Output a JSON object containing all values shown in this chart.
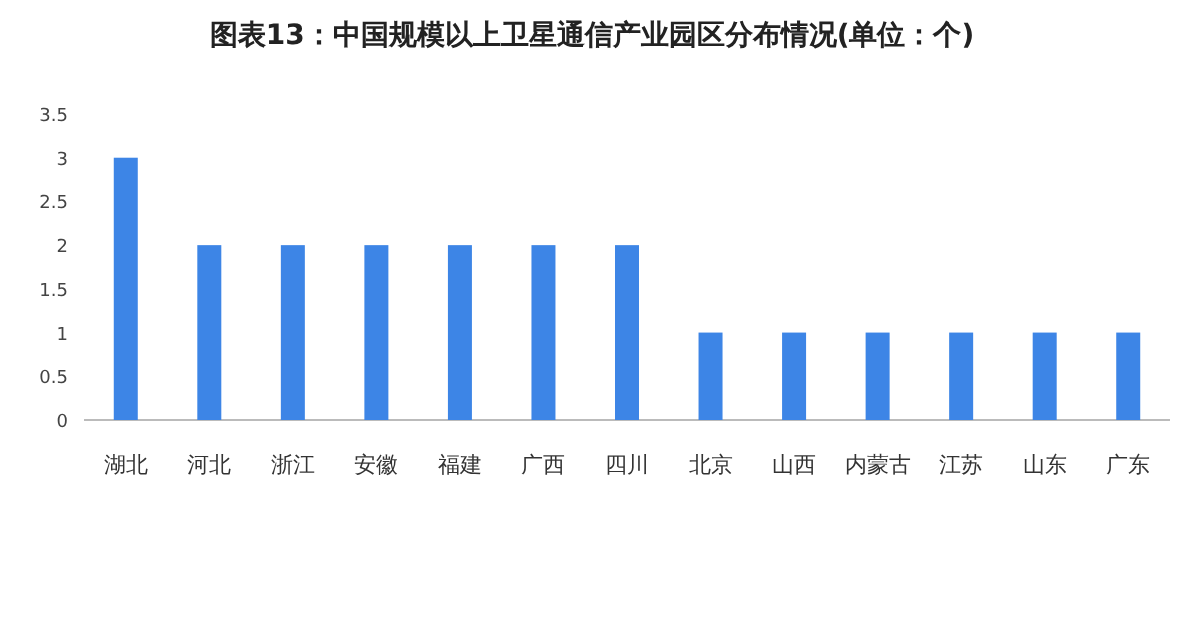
{
  "chart_data": {
    "type": "bar",
    "title": "图表13：中国规模以上卫星通信产业园区分布情况(单位：个)",
    "categories": [
      "湖北",
      "河北",
      "浙江",
      "安徽",
      "福建",
      "广西",
      "四川",
      "北京",
      "山西",
      "内蒙古",
      "江苏",
      "山东",
      "广东"
    ],
    "values": [
      3,
      2,
      2,
      2,
      2,
      2,
      2,
      1,
      1,
      1,
      1,
      1,
      1
    ],
    "color": "#3d85e6",
    "ylim": [
      0,
      3.5
    ],
    "yticks": [
      0,
      0.5,
      1,
      1.5,
      2,
      2.5,
      3,
      3.5
    ]
  }
}
